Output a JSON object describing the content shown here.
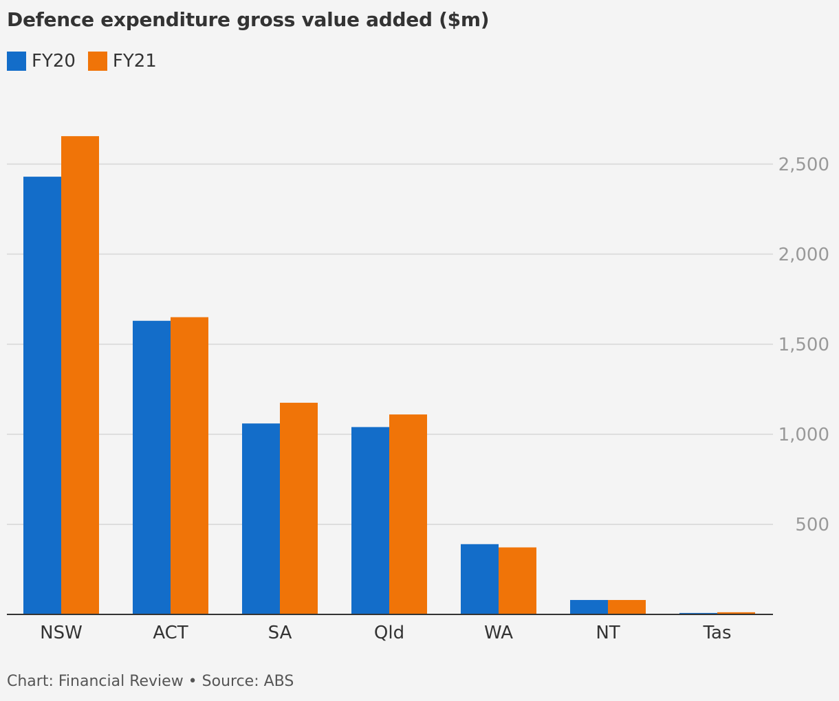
{
  "chart_data": {
    "type": "bar",
    "title": "Defence expenditure gross value added ($m)",
    "categories": [
      "NSW",
      "ACT",
      "SA",
      "Qld",
      "WA",
      "NT",
      "Tas"
    ],
    "series": [
      {
        "name": "FY20",
        "color": "#136dc9",
        "values": [
          2430,
          1630,
          1060,
          1040,
          390,
          80,
          8
        ]
      },
      {
        "name": "FY21",
        "color": "#f07408",
        "values": [
          2655,
          1650,
          1175,
          1110,
          372,
          80,
          12
        ]
      }
    ],
    "ylim": [
      0,
      2750
    ],
    "yticks": [
      500,
      1000,
      1500,
      2000,
      2500
    ],
    "ytick_labels": [
      "500",
      "1,000",
      "1,500",
      "2,000",
      "2,500"
    ],
    "y_axis_side": "right",
    "grid": true,
    "legend_position": "top-left"
  },
  "footer": {
    "text": "Chart: Financial Review • Source: ABS"
  }
}
